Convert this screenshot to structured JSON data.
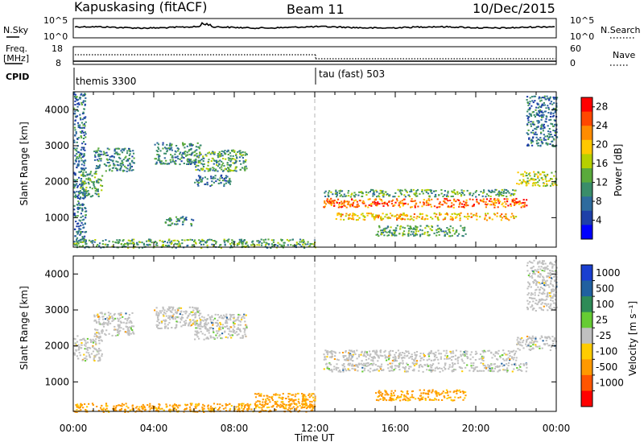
{
  "header": {
    "station": "Kapuskasing (fitACF)",
    "beam": "Beam 11",
    "date": "10/Dec/2015"
  },
  "top_panels": {
    "nsky_label": "N.Sky",
    "nsky_ticks": [
      "10^5",
      "10^0"
    ],
    "nsearch_label": "N.Search",
    "nsearch_ticks": [
      "10^5",
      "10^0"
    ],
    "freq_label_1": "Freq.",
    "freq_label_2": "[MHz]",
    "freq_ticks": [
      "18",
      "8"
    ],
    "nave_label": "Nave",
    "nave_ticks": [
      "60",
      "0"
    ],
    "cpid_label": "CPID",
    "cpid_segments": [
      "themis 3300",
      "tau (fast) 503"
    ]
  },
  "colors": {
    "power": [
      "#0000ff",
      "#1e3fa8",
      "#2e6b9e",
      "#3a8d6a",
      "#5aaa3c",
      "#b6d000",
      "#ffc800",
      "#ff8c00",
      "#ff4800",
      "#ff0000"
    ],
    "velocity": [
      "#1a3fd0",
      "#2060a0",
      "#2e8b57",
      "#66cc33",
      "#c0c0c0",
      "#ffcc00",
      "#ff9900",
      "#ff5500",
      "#ff0000"
    ],
    "echo_grey": "#bdbdbd"
  },
  "chart_data": [
    {
      "type": "heatmap",
      "name": "power",
      "xlabel": "",
      "ylabel": "Slant Range [km]",
      "xlim": [
        "00:00",
        "24:00"
      ],
      "ylim": [
        180,
        4500
      ],
      "y_ticks": [
        1000,
        2000,
        3000,
        4000
      ],
      "colorbar_label": "Power [dB]",
      "colorbar_ticks": [
        4,
        8,
        12,
        16,
        20,
        24,
        28
      ],
      "colorbar_range": [
        0,
        30
      ],
      "features": [
        {
          "t": [
            0.0,
            0.6
          ],
          "r": [
            180,
            4500
          ],
          "value": 8
        },
        {
          "t": [
            0.3,
            1.4
          ],
          "r": [
            1600,
            2300
          ],
          "value": 12
        },
        {
          "t": [
            1.0,
            3.0
          ],
          "r": [
            2300,
            2950
          ],
          "value": 10
        },
        {
          "t": [
            4.0,
            6.3
          ],
          "r": [
            2500,
            3100
          ],
          "value": 10
        },
        {
          "t": [
            6.0,
            8.6
          ],
          "r": [
            2300,
            2900
          ],
          "value": 12
        },
        {
          "t": [
            4.5,
            6.0
          ],
          "r": [
            800,
            1050
          ],
          "value": 10
        },
        {
          "t": [
            6.0,
            7.8
          ],
          "r": [
            1900,
            2200
          ],
          "value": 8
        },
        {
          "t": [
            0.0,
            12.0
          ],
          "r": [
            180,
            420
          ],
          "value": 12
        },
        {
          "t": [
            12.4,
            22.5
          ],
          "r": [
            1300,
            1550
          ],
          "value": 24
        },
        {
          "t": [
            12.4,
            22.0
          ],
          "r": [
            1600,
            1800
          ],
          "value": 12
        },
        {
          "t": [
            13.0,
            22.0
          ],
          "r": [
            950,
            1150
          ],
          "value": 20
        },
        {
          "t": [
            15.0,
            19.5
          ],
          "r": [
            500,
            800
          ],
          "value": 12
        },
        {
          "t": [
            22.0,
            24.0
          ],
          "r": [
            1900,
            2300
          ],
          "value": 16
        },
        {
          "t": [
            22.5,
            24.0
          ],
          "r": [
            3000,
            4400
          ],
          "value": 8
        }
      ]
    },
    {
      "type": "heatmap",
      "name": "velocity",
      "xlabel": "Time UT",
      "ylabel": "Slant Range [km]",
      "xlim": [
        "00:00",
        "24:00"
      ],
      "ylim": [
        180,
        4500
      ],
      "x_ticks": [
        "00:00",
        "04:00",
        "08:00",
        "12:00",
        "16:00",
        "20:00",
        "00:00"
      ],
      "y_ticks": [
        1000,
        2000,
        3000,
        4000
      ],
      "colorbar_label": "Velocity [m s⁻¹]",
      "colorbar_ticks": [
        "1000",
        "500",
        "100",
        "25",
        "-25",
        "-100",
        "-500",
        "-1000"
      ],
      "features": [
        {
          "t": [
            0.0,
            1.4
          ],
          "r": [
            1600,
            2300
          ],
          "value": 0
        },
        {
          "t": [
            1.0,
            3.0
          ],
          "r": [
            2300,
            2950
          ],
          "value": 0
        },
        {
          "t": [
            4.0,
            6.3
          ],
          "r": [
            2500,
            3100
          ],
          "value": 0
        },
        {
          "t": [
            6.0,
            8.6
          ],
          "r": [
            2200,
            2900
          ],
          "value": 0
        },
        {
          "t": [
            0.0,
            12.0
          ],
          "r": [
            180,
            420
          ],
          "value": -100
        },
        {
          "t": [
            9.0,
            12.0
          ],
          "r": [
            300,
            700
          ],
          "value": -100
        },
        {
          "t": [
            12.4,
            22.5
          ],
          "r": [
            1300,
            1550
          ],
          "value": 0
        },
        {
          "t": [
            12.4,
            22.0
          ],
          "r": [
            1600,
            1900
          ],
          "value": 0
        },
        {
          "t": [
            15.0,
            19.5
          ],
          "r": [
            500,
            800
          ],
          "value": -100
        },
        {
          "t": [
            22.0,
            24.0
          ],
          "r": [
            1900,
            2300
          ],
          "value": 0
        },
        {
          "t": [
            22.5,
            24.0
          ],
          "r": [
            3000,
            4400
          ],
          "value": 0
        }
      ]
    }
  ]
}
